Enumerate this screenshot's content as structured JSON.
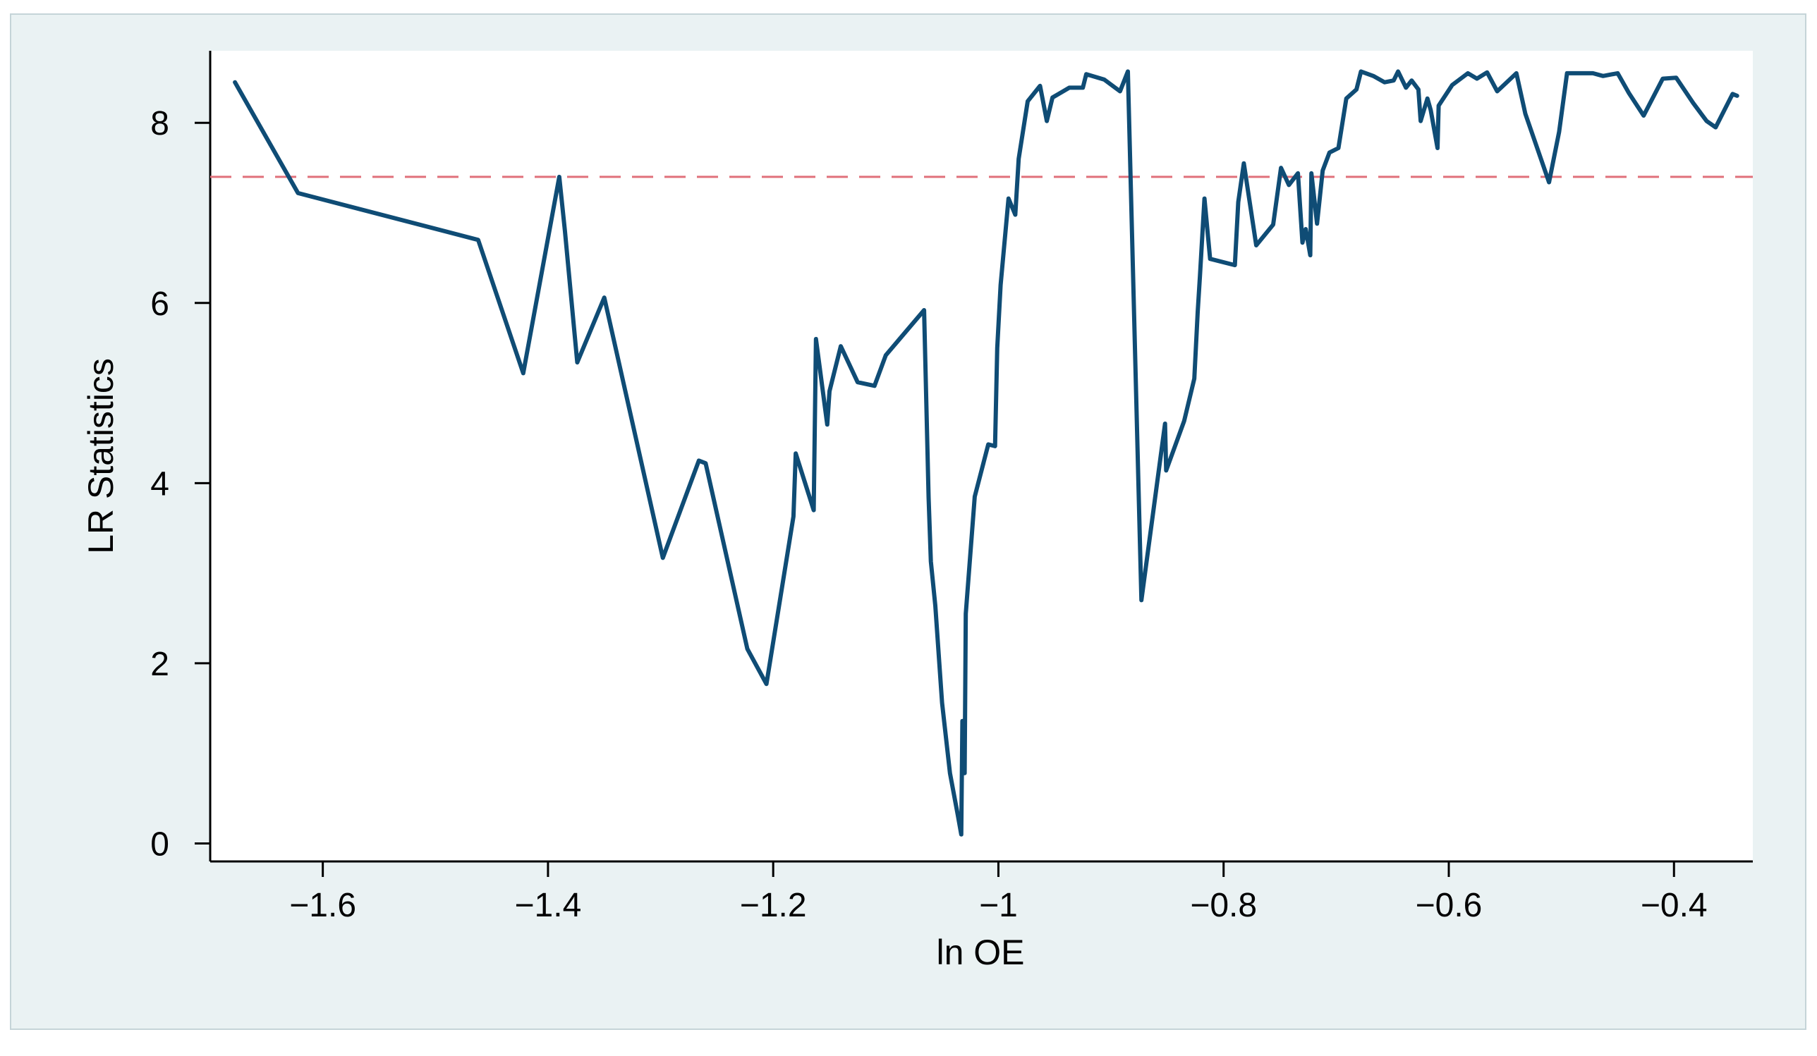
{
  "chart_data": {
    "type": "line",
    "title": "",
    "xlabel": "ln OE",
    "ylabel": "LR Statistics",
    "xlim": [
      -1.7,
      -0.33
    ],
    "ylim": [
      -0.2,
      8.8
    ],
    "xticks": [
      -1.6,
      -1.4,
      -1.2,
      -1,
      -0.8,
      -0.6,
      -0.4
    ],
    "xtick_labels": [
      "−1.6",
      "−1.4",
      "−1.2",
      "−1",
      "−0.8",
      "−0.6",
      "−0.4"
    ],
    "yticks": [
      0,
      2,
      4,
      6,
      8
    ],
    "ytick_labels": [
      "0",
      "2",
      "4",
      "6",
      "8"
    ],
    "grid": false,
    "legend": "none",
    "threshold": {
      "value": 7.4,
      "style": "dashed",
      "color": "#e0707a"
    },
    "series": [
      {
        "color": "#0f4c75",
        "points": [
          [
            -1.678,
            8.45
          ],
          [
            -1.622,
            7.22
          ],
          [
            -1.462,
            6.7
          ],
          [
            -1.422,
            5.22
          ],
          [
            -1.39,
            7.4
          ],
          [
            -1.385,
            6.8
          ],
          [
            -1.374,
            5.34
          ],
          [
            -1.35,
            6.06
          ],
          [
            -1.298,
            3.17
          ],
          [
            -1.266,
            4.25
          ],
          [
            -1.26,
            4.22
          ],
          [
            -1.223,
            2.16
          ],
          [
            -1.206,
            1.77
          ],
          [
            -1.182,
            3.63
          ],
          [
            -1.18,
            4.33
          ],
          [
            -1.164,
            3.7
          ],
          [
            -1.162,
            5.6
          ],
          [
            -1.152,
            4.65
          ],
          [
            -1.15,
            5.02
          ],
          [
            -1.14,
            5.52
          ],
          [
            -1.125,
            5.12
          ],
          [
            -1.11,
            5.08
          ],
          [
            -1.1,
            5.42
          ],
          [
            -1.066,
            5.92
          ],
          [
            -1.062,
            3.84
          ],
          [
            -1.06,
            3.13
          ],
          [
            -1.056,
            2.64
          ],
          [
            -1.05,
            1.56
          ],
          [
            -1.043,
            0.78
          ],
          [
            -1.036,
            0.31
          ],
          [
            -1.033,
            0.1
          ],
          [
            -1.032,
            1.36
          ],
          [
            -1.03,
            0.78
          ],
          [
            -1.029,
            2.55
          ],
          [
            -1.021,
            3.85
          ],
          [
            -1.009,
            4.43
          ],
          [
            -1.003,
            4.41
          ],
          [
            -1.001,
            5.5
          ],
          [
            -0.998,
            6.2
          ],
          [
            -0.991,
            7.16
          ],
          [
            -0.985,
            6.98
          ],
          [
            -0.982,
            7.6
          ],
          [
            -0.974,
            8.24
          ],
          [
            -0.963,
            8.41
          ],
          [
            -0.957,
            8.02
          ],
          [
            -0.952,
            8.28
          ],
          [
            -0.937,
            8.39
          ],
          [
            -0.925,
            8.39
          ],
          [
            -0.922,
            8.54
          ],
          [
            -0.906,
            8.48
          ],
          [
            -0.892,
            8.35
          ],
          [
            -0.885,
            8.57
          ],
          [
            -0.873,
            2.7
          ],
          [
            -0.852,
            4.66
          ],
          [
            -0.851,
            4.14
          ],
          [
            -0.835,
            4.69
          ],
          [
            -0.826,
            5.16
          ],
          [
            -0.823,
            5.9
          ],
          [
            -0.821,
            6.3
          ],
          [
            -0.817,
            7.16
          ],
          [
            -0.812,
            6.49
          ],
          [
            -0.79,
            6.42
          ],
          [
            -0.787,
            7.12
          ],
          [
            -0.782,
            7.55
          ],
          [
            -0.771,
            6.64
          ],
          [
            -0.756,
            6.87
          ],
          [
            -0.749,
            7.5
          ],
          [
            -0.742,
            7.31
          ],
          [
            -0.734,
            7.44
          ],
          [
            -0.73,
            6.67
          ],
          [
            -0.727,
            6.82
          ],
          [
            -0.723,
            6.53
          ],
          [
            -0.722,
            7.44
          ],
          [
            -0.717,
            6.88
          ],
          [
            -0.712,
            7.47
          ],
          [
            -0.706,
            7.67
          ],
          [
            -0.698,
            7.72
          ],
          [
            -0.691,
            8.27
          ],
          [
            -0.682,
            8.37
          ],
          [
            -0.678,
            8.57
          ],
          [
            -0.667,
            8.52
          ],
          [
            -0.657,
            8.45
          ],
          [
            -0.649,
            8.47
          ],
          [
            -0.645,
            8.57
          ],
          [
            -0.638,
            8.39
          ],
          [
            -0.633,
            8.47
          ],
          [
            -0.627,
            8.37
          ],
          [
            -0.625,
            8.02
          ],
          [
            -0.619,
            8.27
          ],
          [
            -0.616,
            8.14
          ],
          [
            -0.61,
            7.72
          ],
          [
            -0.609,
            8.19
          ],
          [
            -0.597,
            8.42
          ],
          [
            -0.583,
            8.55
          ],
          [
            -0.575,
            8.49
          ],
          [
            -0.566,
            8.56
          ],
          [
            -0.557,
            8.35
          ],
          [
            -0.54,
            8.55
          ],
          [
            -0.532,
            8.1
          ],
          [
            -0.511,
            7.34
          ],
          [
            -0.502,
            7.9
          ],
          [
            -0.495,
            8.55
          ],
          [
            -0.472,
            8.55
          ],
          [
            -0.463,
            8.52
          ],
          [
            -0.45,
            8.55
          ],
          [
            -0.44,
            8.33
          ],
          [
            -0.427,
            8.08
          ],
          [
            -0.41,
            8.49
          ],
          [
            -0.398,
            8.5
          ],
          [
            -0.383,
            8.22
          ],
          [
            -0.371,
            8.02
          ],
          [
            -0.363,
            7.95
          ],
          [
            -0.348,
            8.32
          ],
          [
            -0.344,
            8.3
          ]
        ]
      }
    ]
  }
}
